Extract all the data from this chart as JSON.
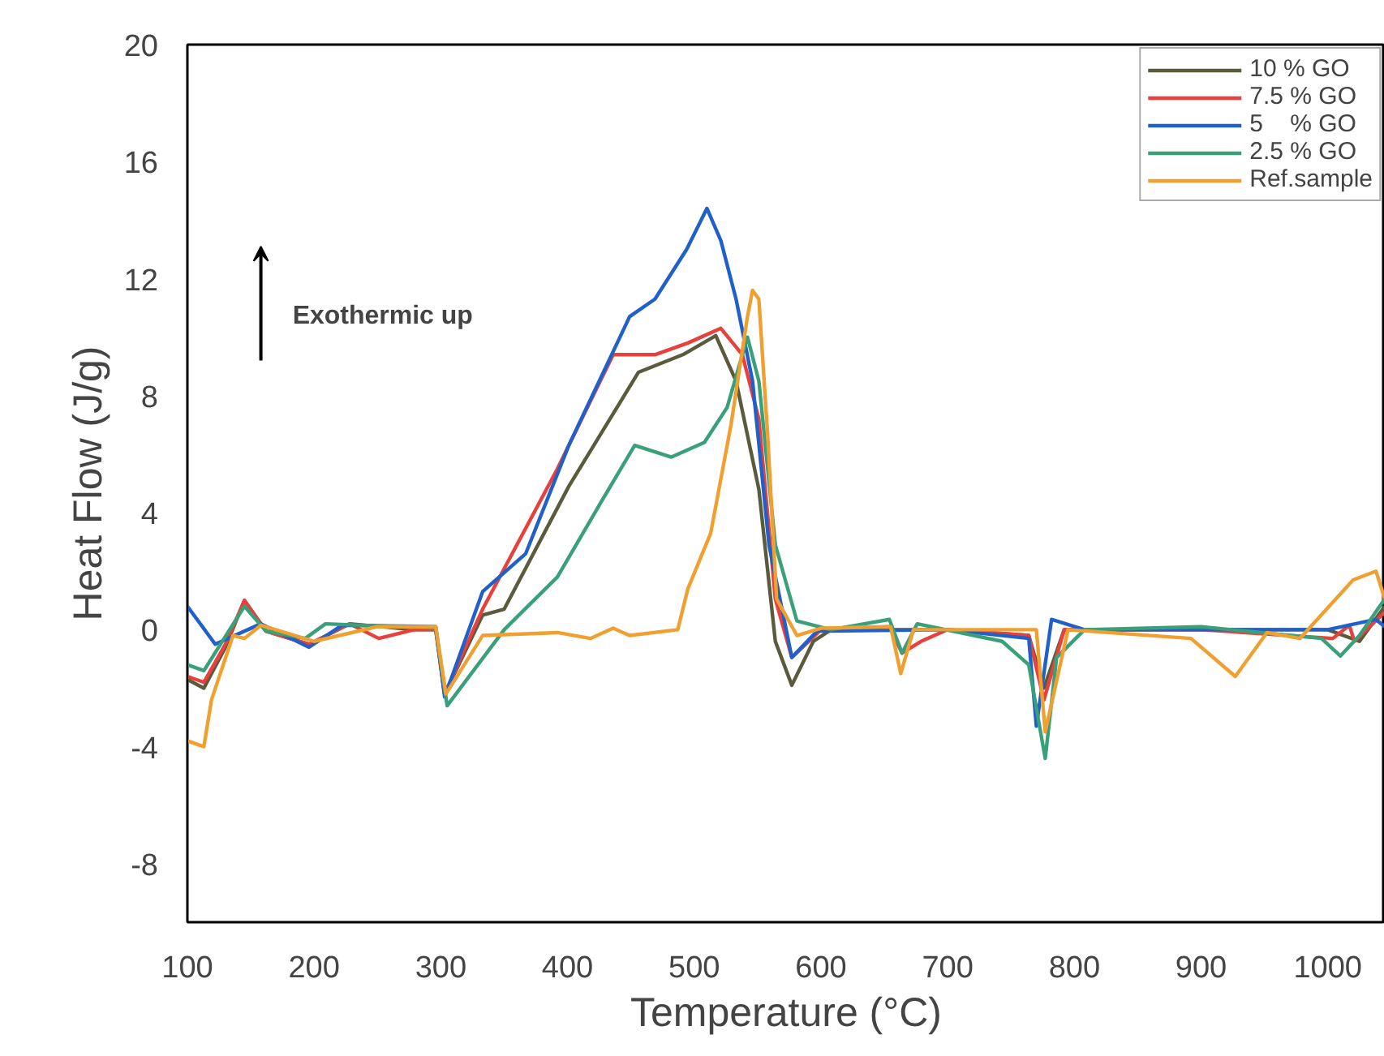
{
  "chart_data": {
    "type": "line",
    "xlabel": "Temperature (°C)",
    "ylabel": "Heat Flow (J/g)",
    "xlim": [
      100,
      1045
    ],
    "xticks": [
      100,
      200,
      300,
      400,
      500,
      600,
      700,
      800,
      900,
      1000
    ],
    "ylim": [
      -10,
      20
    ],
    "yticks": [
      -8,
      -4,
      0,
      4,
      8,
      12,
      16,
      20
    ],
    "grid": false,
    "legend": "top right",
    "marker": "none",
    "line_style": "solid",
    "annotations": [
      "Exothermic up"
    ],
    "series": [
      {
        "name": "10 % GO",
        "color": "#5a5a3c",
        "x": [
          100,
          113,
          130,
          145,
          162,
          196,
          228,
          279,
          296,
          303,
          333,
          350,
          401,
          456,
          491,
          517,
          533,
          551,
          564,
          577,
          594,
          608,
          700,
          764,
          776,
          792,
          900,
          1000,
          1025,
          1045
        ],
        "values": [
          -1.7,
          -2.0,
          -0.6,
          1.0,
          -0.05,
          -0.5,
          0.2,
          0.0,
          0.0,
          -2.2,
          0.5,
          0.7,
          4.9,
          8.8,
          9.4,
          10.05,
          8.5,
          4.8,
          -0.4,
          -1.9,
          -0.4,
          0.0,
          0.0,
          -0.2,
          -2.0,
          0.0,
          0.0,
          0.0,
          -0.4,
          0.8
        ]
      },
      {
        "name": "7.5 % GO",
        "color": "#e8403c",
        "x": [
          100,
          113,
          130,
          145,
          162,
          196,
          228,
          251,
          279,
          296,
          303,
          333,
          392,
          436,
          469,
          495,
          521,
          538,
          551,
          564,
          577,
          600,
          654,
          664,
          679,
          700,
          764,
          776,
          792,
          900,
          1004,
          1017,
          1021,
          1045
        ],
        "values": [
          -1.6,
          -1.8,
          -0.5,
          1.0,
          -0.05,
          -0.5,
          0.2,
          -0.3,
          0.0,
          0.0,
          -2.2,
          0.7,
          5.5,
          9.4,
          9.4,
          9.8,
          10.3,
          9.4,
          7.2,
          1.05,
          -0.95,
          0.0,
          0.1,
          -0.8,
          -0.4,
          0.0,
          -0.2,
          -2.4,
          0.0,
          0.0,
          -0.3,
          0.15,
          -0.4,
          0.6
        ]
      },
      {
        "name": "5    % GO",
        "color": "#2060c8",
        "x": [
          100,
          122,
          158,
          196,
          222,
          296,
          303,
          333,
          367,
          401,
          449,
          469,
          494,
          510,
          521,
          533,
          546,
          559,
          577,
          597,
          700,
          764,
          770,
          782,
          808,
          900,
          1000,
          1038,
          1045
        ],
        "values": [
          0.8,
          -0.5,
          0.2,
          -0.6,
          0.15,
          0.1,
          -2.3,
          1.3,
          2.6,
          6.3,
          10.7,
          11.3,
          13.0,
          14.4,
          13.3,
          11.3,
          8.5,
          2.9,
          -0.95,
          -0.05,
          0.0,
          -0.3,
          -3.3,
          0.35,
          0.0,
          0.0,
          0.0,
          0.35,
          0.1
        ]
      },
      {
        "name": "2.5 % GO",
        "color": "#3aa07a",
        "x": [
          100,
          113,
          145,
          162,
          193,
          209,
          296,
          305,
          350,
          392,
          427,
          453,
          482,
          508,
          526,
          542,
          551,
          564,
          581,
          608,
          654,
          664,
          676,
          743,
          764,
          777,
          786,
          808,
          900,
          995,
          1010,
          1025,
          1045
        ],
        "values": [
          -1.2,
          -1.4,
          0.8,
          -0.05,
          -0.3,
          0.2,
          0.05,
          -2.6,
          0.0,
          1.8,
          4.4,
          6.3,
          5.9,
          6.4,
          7.6,
          10.0,
          8.5,
          2.9,
          0.3,
          0.0,
          0.35,
          -0.8,
          0.2,
          -0.4,
          -1.2,
          -4.4,
          -0.95,
          0.0,
          0.1,
          -0.3,
          -0.9,
          -0.2,
          1.05
        ]
      },
      {
        "name": "Ref.sample",
        "color": "#f0a030",
        "x": [
          100,
          113,
          119,
          136,
          145,
          158,
          200,
          250,
          296,
          304,
          333,
          392,
          418,
          436,
          449,
          487,
          495,
          513,
          529,
          542,
          546,
          551,
          558,
          565,
          581,
          600,
          655,
          663,
          673,
          770,
          777,
          795,
          892,
          927,
          952,
          978,
          1020,
          1038,
          1045
        ],
        "values": [
          -3.8,
          -4.0,
          -2.4,
          -0.2,
          -0.3,
          0.15,
          -0.4,
          0.1,
          0.1,
          -2.2,
          -0.2,
          -0.1,
          -0.3,
          0.05,
          -0.2,
          0.0,
          1.4,
          3.3,
          7.0,
          10.7,
          11.6,
          11.3,
          6.6,
          1.05,
          -0.2,
          0.05,
          0.1,
          -1.5,
          0.0,
          0.0,
          -3.5,
          0.0,
          -0.3,
          -1.6,
          -0.1,
          -0.3,
          1.7,
          2.0,
          1.05
        ]
      }
    ]
  }
}
